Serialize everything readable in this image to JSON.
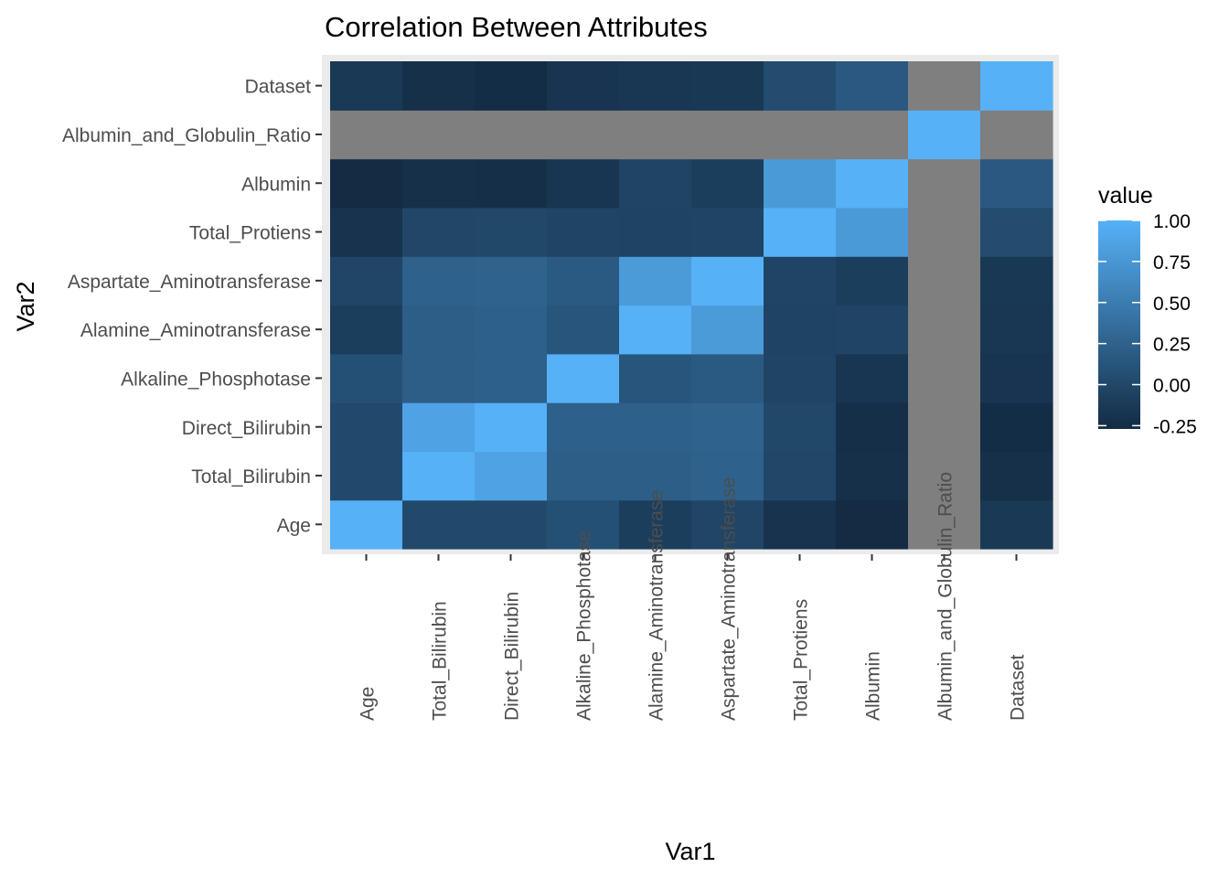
{
  "chart_data": {
    "type": "heatmap",
    "title": "Correlation Between Attributes",
    "xlabel": "Var1",
    "ylabel": "Var2",
    "x_categories": [
      "Age",
      "Total_Bilirubin",
      "Direct_Bilirubin",
      "Alkaline_Phosphotase",
      "Alamine_Aminotransferase",
      "Aspartate_Aminotransferase",
      "Total_Protiens",
      "Albumin",
      "Albumin_and_Globulin_Ratio",
      "Dataset"
    ],
    "y_categories": [
      "Age",
      "Total_Bilirubin",
      "Direct_Bilirubin",
      "Alkaline_Phosphotase",
      "Alamine_Aminotransferase",
      "Aspartate_Aminotransferase",
      "Total_Protiens",
      "Albumin",
      "Albumin_and_Globulin_Ratio",
      "Dataset"
    ],
    "values": [
      [
        1.0,
        0.01,
        0.01,
        0.08,
        -0.09,
        -0.02,
        -0.19,
        -0.27,
        null,
        -0.14
      ],
      [
        0.01,
        1.0,
        0.87,
        0.21,
        0.21,
        0.24,
        -0.01,
        -0.22,
        null,
        -0.22
      ],
      [
        0.01,
        0.87,
        1.0,
        0.23,
        0.23,
        0.26,
        0.0,
        -0.23,
        null,
        -0.25
      ],
      [
        0.08,
        0.21,
        0.23,
        1.0,
        0.13,
        0.17,
        -0.03,
        -0.17,
        null,
        -0.18
      ],
      [
        -0.09,
        0.21,
        0.23,
        0.13,
        1.0,
        0.79,
        -0.04,
        -0.03,
        null,
        -0.16
      ],
      [
        -0.02,
        0.24,
        0.26,
        0.17,
        0.79,
        1.0,
        -0.03,
        -0.09,
        null,
        -0.15
      ],
      [
        -0.19,
        -0.01,
        0.0,
        -0.03,
        -0.04,
        -0.03,
        1.0,
        0.78,
        null,
        0.04
      ],
      [
        -0.27,
        -0.22,
        -0.23,
        -0.17,
        -0.03,
        -0.09,
        0.78,
        1.0,
        null,
        0.16
      ],
      [
        null,
        null,
        null,
        null,
        null,
        null,
        null,
        null,
        1.0,
        null
      ],
      [
        -0.14,
        -0.22,
        -0.25,
        -0.18,
        -0.16,
        -0.15,
        0.04,
        0.16,
        null,
        1.0
      ]
    ],
    "missing_color": "#7f7f7f",
    "legend": {
      "title": "value",
      "ticks": [
        1.0,
        0.75,
        0.5,
        0.25,
        0.0,
        -0.25
      ],
      "tick_labels": [
        "1.00",
        "0.75",
        "0.50",
        "0.25",
        "0.00",
        "-0.25"
      ],
      "range": [
        -0.27,
        1.0
      ],
      "low_color": "#132b43",
      "high_color": "#56b1f7",
      "placement": "right"
    },
    "panel_background": "#ebebeb",
    "grid": true
  }
}
